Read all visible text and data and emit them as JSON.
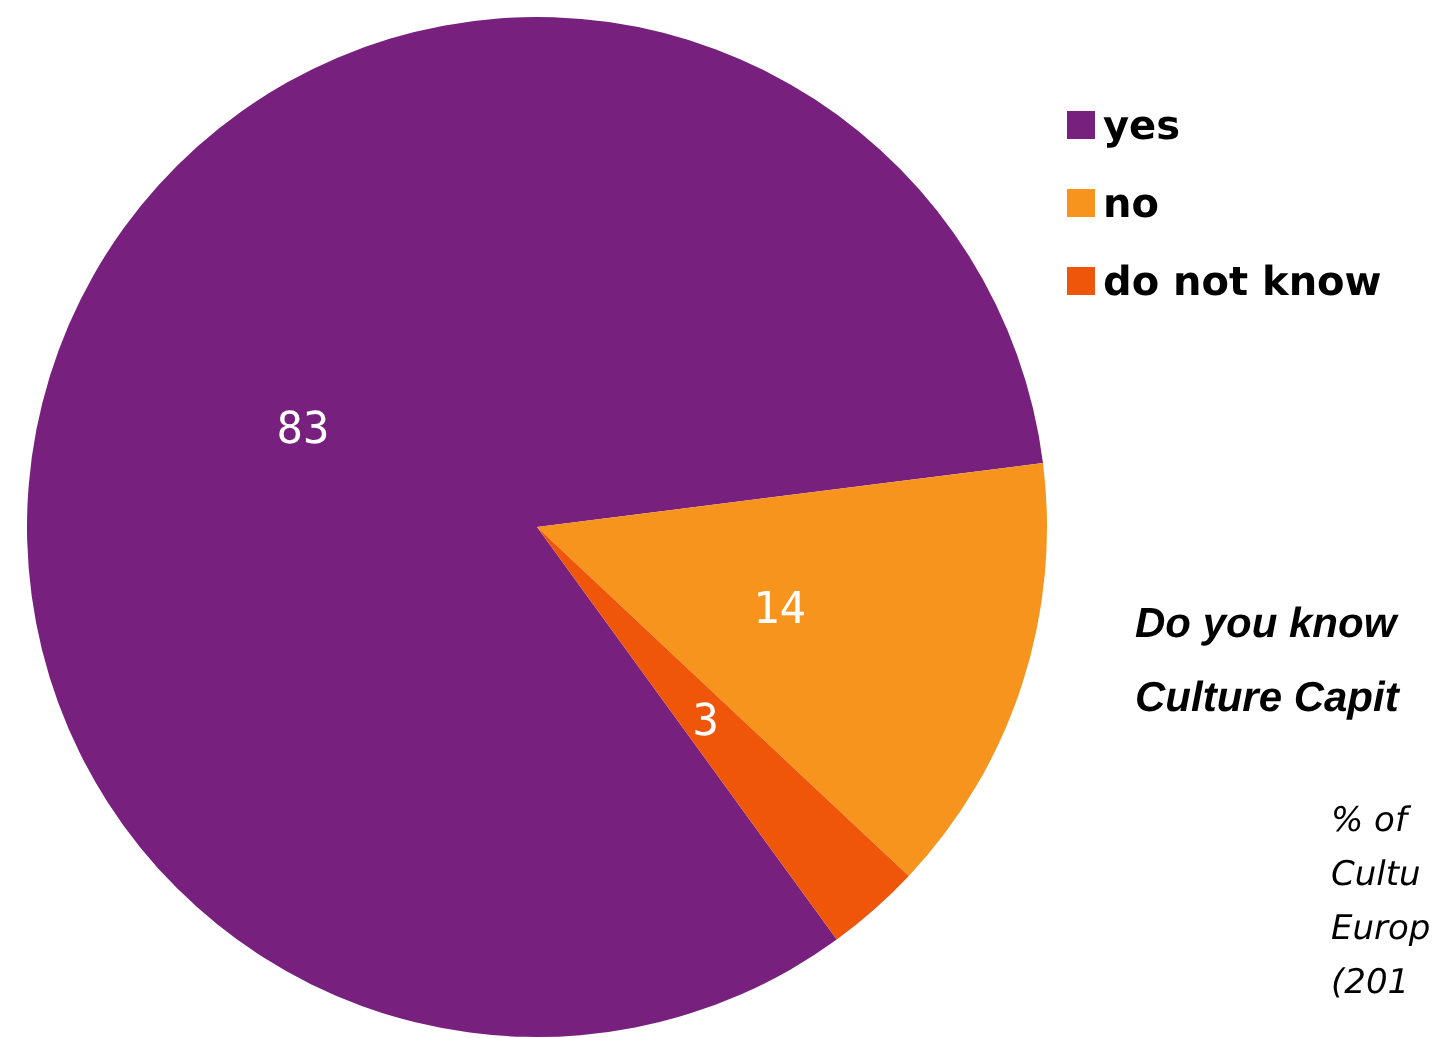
{
  "chart_data": {
    "type": "pie",
    "title": "Do you know\nCulture Capit",
    "categories": [
      "yes",
      "no",
      "do not know"
    ],
    "values": [
      83,
      14,
      3
    ],
    "colors": [
      "#77207e",
      "#f7941d",
      "#f0560a"
    ],
    "data_labels": true,
    "legend": "top right",
    "annotations": [
      "% of\nCultu\nEurop\n(201"
    ]
  }
}
